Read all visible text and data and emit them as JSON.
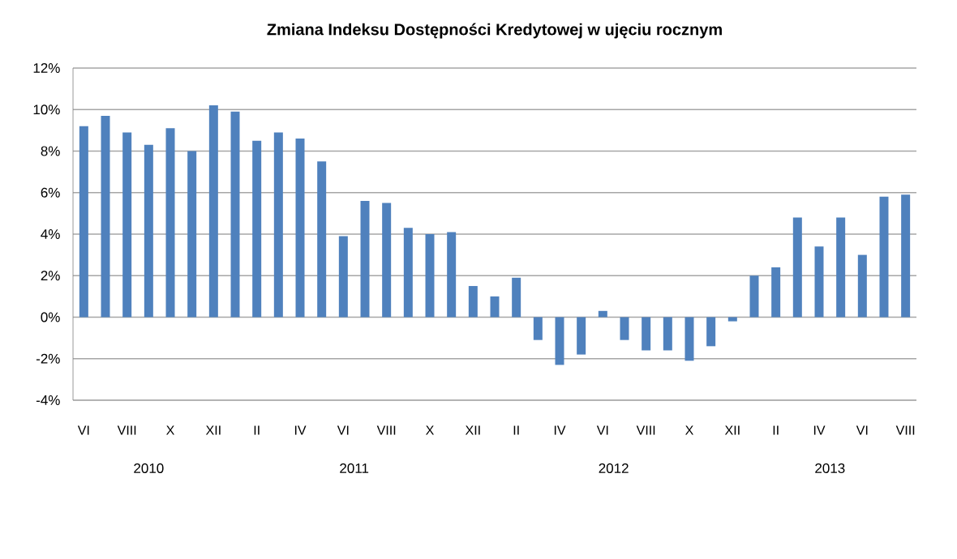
{
  "chart_data": {
    "type": "bar",
    "title": "Zmiana Indeksu Dostępności Kredytowej  w ujęciu rocznym",
    "categories": [
      "VI",
      null,
      "VIII",
      null,
      "X",
      null,
      "XII",
      null,
      "II",
      null,
      "IV",
      null,
      "VI",
      null,
      "VIII",
      null,
      "X",
      null,
      "XII",
      null,
      "II",
      null,
      "IV",
      null,
      "VI",
      null,
      "VIII",
      null,
      "X",
      null,
      "XII",
      null,
      "II",
      null,
      "IV",
      null,
      "VI",
      null,
      "VIII"
    ],
    "values": [
      9.2,
      9.7,
      8.9,
      8.3,
      9.1,
      8.0,
      10.2,
      9.9,
      8.5,
      8.9,
      8.6,
      7.5,
      3.9,
      5.6,
      5.5,
      4.3,
      4.0,
      4.1,
      1.5,
      1.0,
      1.9,
      -1.1,
      -2.3,
      -1.8,
      0.3,
      -1.1,
      -1.6,
      -1.6,
      -2.1,
      -1.4,
      -0.2,
      2.0,
      2.4,
      4.8,
      3.4,
      4.8,
      3.0,
      5.8,
      5.9
    ],
    "color": "#4f81bd",
    "ylim": [
      -4,
      12
    ],
    "yticks": [
      {
        "value": -4,
        "label": "-4%"
      },
      {
        "value": -2,
        "label": "-2%"
      },
      {
        "value": 0,
        "label": "0%"
      },
      {
        "value": 2,
        "label": "2%"
      },
      {
        "value": 4,
        "label": "4%"
      },
      {
        "value": 6,
        "label": "6%"
      },
      {
        "value": 8,
        "label": "8%"
      },
      {
        "value": 10,
        "label": "10%"
      },
      {
        "value": 12,
        "label": "12%"
      }
    ],
    "grid": "y",
    "annotations": [
      "2010",
      "2011",
      "2012",
      "2013"
    ]
  }
}
